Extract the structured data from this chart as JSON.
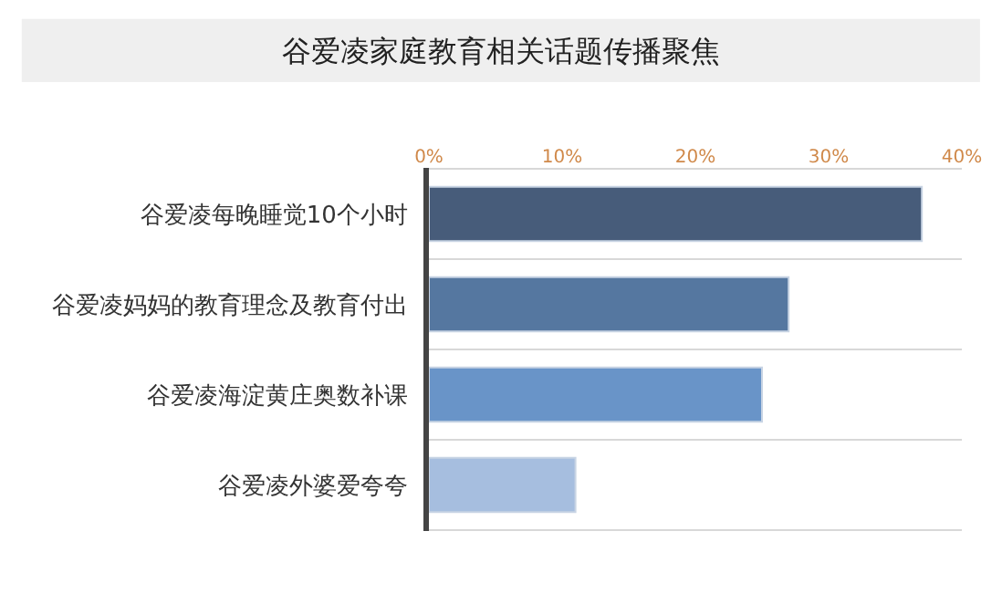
{
  "chart_data": {
    "type": "bar",
    "orientation": "horizontal",
    "title": "谷爱凌家庭教育相关话题传播聚焦",
    "categories": [
      "谷爱凌每晚睡觉10个小时",
      "谷爱凌妈妈的教育理念及教育付出",
      "谷爱凌海淀黄庄奥数补课",
      "谷爱凌外婆爱夸夸"
    ],
    "values": [
      37,
      27,
      25,
      11
    ],
    "colors": [
      "#475c7a",
      "#5577a0",
      "#6994c8",
      "#a6bedf"
    ],
    "xlim": [
      0,
      40
    ],
    "xticks": [
      {
        "value": 0,
        "label": "0%"
      },
      {
        "value": 10,
        "label": "10%"
      },
      {
        "value": 20,
        "label": "20%"
      },
      {
        "value": 30,
        "label": "30%"
      },
      {
        "value": 40,
        "label": "40%"
      }
    ],
    "grid": "y",
    "legend": false
  }
}
